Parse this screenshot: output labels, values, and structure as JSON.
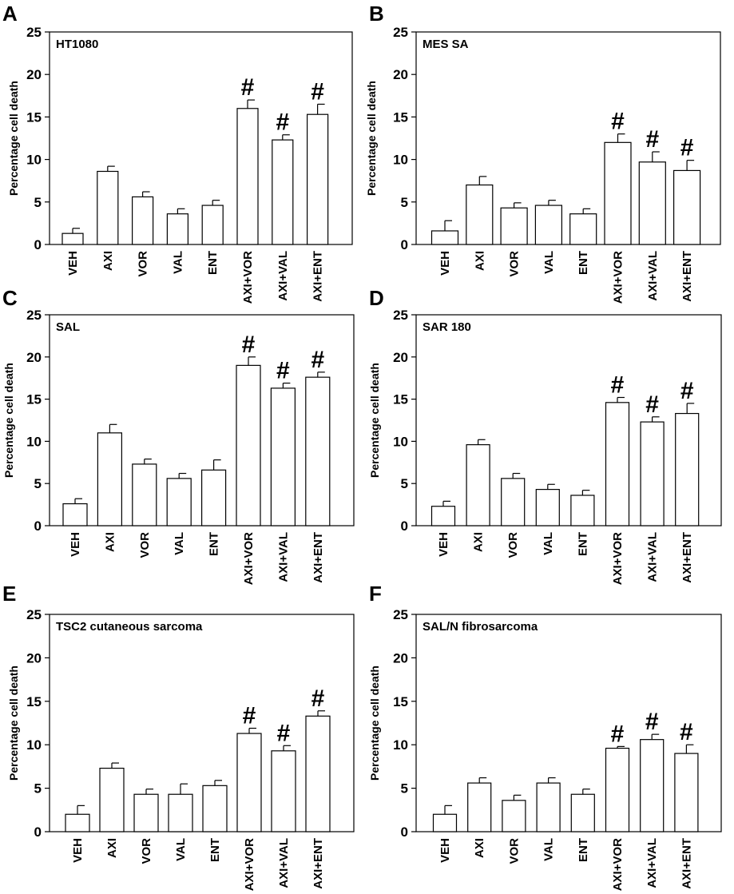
{
  "chart_data": [
    {
      "panel": "A",
      "type": "bar",
      "title": "HT1080",
      "ylabel": "Percentage cell death",
      "xlabel": "",
      "ylim": [
        0,
        25
      ],
      "yticks": [
        0,
        5,
        10,
        15,
        20,
        25
      ],
      "categories": [
        "VEH",
        "AXI",
        "VOR",
        "VAL",
        "ENT",
        "AXI+VOR",
        "AXI+VAL",
        "AXI+ENT"
      ],
      "values": [
        1.3,
        8.6,
        5.6,
        3.6,
        4.6,
        16.0,
        12.3,
        15.3
      ],
      "errors": [
        0.6,
        0.6,
        0.6,
        0.6,
        0.6,
        1.0,
        0.6,
        1.2
      ],
      "significance": [
        "",
        "",
        "",
        "",
        "",
        "#",
        "#",
        "#"
      ]
    },
    {
      "panel": "B",
      "type": "bar",
      "title": "MES SA",
      "ylabel": "Percentage cell death",
      "xlabel": "",
      "ylim": [
        0,
        25
      ],
      "yticks": [
        0,
        5,
        10,
        15,
        20,
        25
      ],
      "categories": [
        "VEH",
        "AXI",
        "VOR",
        "VAL",
        "ENT",
        "AXI+VOR",
        "AXI+VAL",
        "AXI+ENT"
      ],
      "values": [
        1.6,
        7.0,
        4.3,
        4.6,
        3.6,
        12.0,
        9.7,
        8.7
      ],
      "errors": [
        1.2,
        1.0,
        0.6,
        0.6,
        0.6,
        1.0,
        1.2,
        1.2
      ],
      "significance": [
        "",
        "",
        "",
        "",
        "",
        "#",
        "#",
        "#"
      ]
    },
    {
      "panel": "C",
      "type": "bar",
      "title": "SAL",
      "ylabel": "Percentage cell death",
      "xlabel": "",
      "ylim": [
        0,
        25
      ],
      "yticks": [
        0,
        5,
        10,
        15,
        20,
        25
      ],
      "categories": [
        "VEH",
        "AXI",
        "VOR",
        "VAL",
        "ENT",
        "AXI+VOR",
        "AXI+VAL",
        "AXI+ENT"
      ],
      "values": [
        2.6,
        11.0,
        7.3,
        5.6,
        6.6,
        19.0,
        16.3,
        17.6
      ],
      "errors": [
        0.6,
        1.0,
        0.6,
        0.6,
        1.2,
        1.0,
        0.6,
        0.6
      ],
      "significance": [
        "",
        "",
        "",
        "",
        "",
        "#",
        "#",
        "#"
      ]
    },
    {
      "panel": "D",
      "type": "bar",
      "title": "SAR 180",
      "ylabel": "Percentage cell death",
      "xlabel": "",
      "ylim": [
        0,
        25
      ],
      "yticks": [
        0,
        5,
        10,
        15,
        20,
        25
      ],
      "categories": [
        "VEH",
        "AXI",
        "VOR",
        "VAL",
        "ENT",
        "AXI+VOR",
        "AXI+VAL",
        "AXI+ENT"
      ],
      "values": [
        2.3,
        9.6,
        5.6,
        4.3,
        3.6,
        14.6,
        12.3,
        13.3
      ],
      "errors": [
        0.6,
        0.6,
        0.6,
        0.6,
        0.6,
        0.6,
        0.6,
        1.2
      ],
      "significance": [
        "",
        "",
        "",
        "",
        "",
        "#",
        "#",
        "#"
      ]
    },
    {
      "panel": "E",
      "type": "bar",
      "title": "TSC2 cutaneous sarcoma",
      "ylabel": "Percentage cell death",
      "xlabel": "",
      "ylim": [
        0,
        25
      ],
      "yticks": [
        0,
        5,
        10,
        15,
        20,
        25
      ],
      "categories": [
        "VEH",
        "AXI",
        "VOR",
        "VAL",
        "ENT",
        "AXI+VOR",
        "AXI+VAL",
        "AXI+ENT"
      ],
      "values": [
        2.0,
        7.3,
        4.3,
        4.3,
        5.3,
        11.3,
        9.3,
        13.3
      ],
      "errors": [
        1.0,
        0.6,
        0.6,
        1.2,
        0.6,
        0.6,
        0.6,
        0.6
      ],
      "significance": [
        "",
        "",
        "",
        "",
        "",
        "#",
        "#",
        "#"
      ]
    },
    {
      "panel": "F",
      "type": "bar",
      "title": "SAL/N fibrosarcoma",
      "ylabel": "Percentage cell death",
      "xlabel": "",
      "ylim": [
        0,
        25
      ],
      "yticks": [
        0,
        5,
        10,
        15,
        20,
        25
      ],
      "categories": [
        "VEH",
        "AXI",
        "VOR",
        "VAL",
        "ENT",
        "AXI+VOR",
        "AXI+VAL",
        "AXI+ENT"
      ],
      "values": [
        2.0,
        5.6,
        3.6,
        5.6,
        4.3,
        9.6,
        10.6,
        9.0
      ],
      "errors": [
        1.0,
        0.6,
        0.6,
        0.6,
        0.6,
        0.2,
        0.6,
        1.0
      ],
      "significance": [
        "",
        "",
        "",
        "",
        "",
        "#",
        "#",
        "#"
      ]
    }
  ]
}
